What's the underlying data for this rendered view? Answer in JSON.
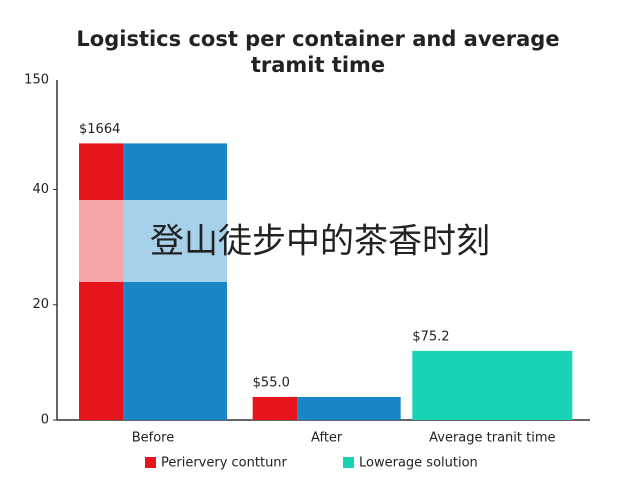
{
  "chart_data": {
    "type": "bar",
    "title_lines": [
      "Logistics cost per container and average",
      "tramit time"
    ],
    "categories": [
      "Before",
      "After",
      "Average tranit time"
    ],
    "series": [
      {
        "name": "Periervery conttunr",
        "color": "#e8141c",
        "values": [
          48,
          4,
          null
        ]
      },
      {
        "color": "#1a86c8",
        "values": [
          48,
          4,
          null
        ]
      },
      {
        "name": "Lowerage solution",
        "color": "#16d4b4",
        "values": [
          null,
          null,
          12
        ]
      }
    ],
    "bar_annotations": [
      "$1664",
      "$55.0",
      "$75.2"
    ],
    "ylim": [
      0,
      59
    ],
    "yticks": [
      0,
      20,
      40
    ],
    "y_top_label": "150",
    "overlay_text": "登山徒步中的茶香时刻"
  }
}
